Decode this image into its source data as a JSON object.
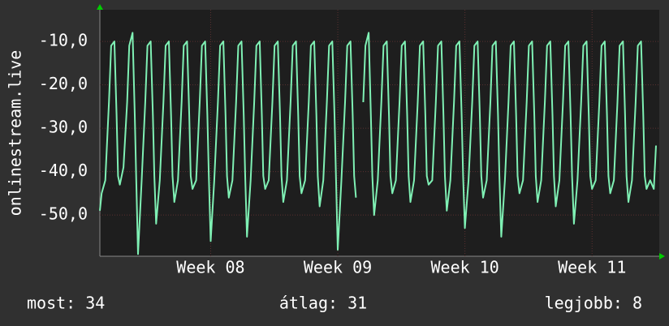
{
  "chart_data": {
    "type": "line",
    "y_label": "onlinestream.live",
    "xlim": [
      0,
      30.8
    ],
    "ylim": [
      -59.5,
      -2.7
    ],
    "xticks": [
      {
        "value": 6.1,
        "label": "Week 08"
      },
      {
        "value": 13.1,
        "label": "Week 09"
      },
      {
        "value": 20.1,
        "label": "Week 10"
      },
      {
        "value": 27.1,
        "label": "Week 11"
      }
    ],
    "yticks": [
      {
        "value": -10,
        "label": "-10,0"
      },
      {
        "value": -20,
        "label": "-20,0"
      },
      {
        "value": -30,
        "label": "-30,0"
      },
      {
        "value": -40,
        "label": "-40,0"
      },
      {
        "value": -50,
        "label": "-50,0"
      }
    ],
    "grid": true,
    "x": [
      0,
      0.1,
      0.3,
      0.5,
      0.62,
      0.8,
      0.92,
      1,
      1.1,
      1.3,
      1.5,
      1.62,
      1.8,
      1.92,
      2,
      2.1,
      2.3,
      2.5,
      2.62,
      2.8,
      2.92,
      3,
      3.1,
      3.3,
      3.5,
      3.62,
      3.8,
      3.92,
      4,
      4.1,
      4.3,
      4.5,
      4.62,
      4.8,
      4.92,
      5,
      5.1,
      5.3,
      5.5,
      5.62,
      5.8,
      5.92,
      6,
      6.1,
      6.3,
      6.5,
      6.62,
      6.8,
      6.92,
      7,
      7.1,
      7.3,
      7.5,
      7.62,
      7.8,
      7.92,
      8,
      8.1,
      8.3,
      8.5,
      8.62,
      8.8,
      8.92,
      9,
      9.1,
      9.3,
      9.5,
      9.62,
      9.8,
      9.92,
      10,
      10.1,
      10.3,
      10.5,
      10.62,
      10.8,
      10.92,
      11,
      11.1,
      11.3,
      11.5,
      11.62,
      11.8,
      11.92,
      12,
      12.1,
      12.3,
      12.5,
      12.62,
      12.8,
      12.92,
      13,
      13.1,
      13.3,
      13.5,
      13.62,
      13.8,
      13.92,
      14,
      14.1,
      14.3,
      14.5,
      14.62,
      14.8,
      14.92,
      15,
      15.1,
      15.3,
      15.5,
      15.62,
      15.8,
      15.92,
      16,
      16.1,
      16.3,
      16.5,
      16.62,
      16.8,
      16.92,
      17,
      17.1,
      17.3,
      17.5,
      17.62,
      17.8,
      17.92,
      18,
      18.1,
      18.3,
      18.5,
      18.62,
      18.8,
      18.92,
      19,
      19.1,
      19.3,
      19.5,
      19.62,
      19.8,
      19.92,
      20,
      20.1,
      20.3,
      20.5,
      20.62,
      20.8,
      20.92,
      21,
      21.1,
      21.3,
      21.5,
      21.62,
      21.8,
      21.92,
      22,
      22.1,
      22.3,
      22.5,
      22.62,
      22.8,
      22.92,
      23,
      23.1,
      23.3,
      23.5,
      23.62,
      23.8,
      23.92,
      24,
      24.1,
      24.3,
      24.5,
      24.62,
      24.8,
      24.92,
      25,
      25.1,
      25.3,
      25.5,
      25.62,
      25.8,
      25.92,
      26,
      26.1,
      26.3,
      26.5,
      26.62,
      26.8,
      26.92,
      27,
      27.1,
      27.3,
      27.5,
      27.62,
      27.8,
      27.92,
      28,
      28.1,
      28.3,
      28.5,
      28.62,
      28.8,
      28.92,
      29,
      29.1,
      29.3,
      29.5,
      29.62,
      29.8,
      29.92,
      30,
      30.1,
      30.3,
      30.5,
      30.62
    ],
    "series": [
      {
        "name": "onlinestream.live",
        "color": "#7ff0b4",
        "values": [
          -49,
          -45,
          -42,
          -24,
          -11,
          -10,
          -27,
          -41,
          -43,
          -39,
          -24,
          -11,
          -8,
          -27,
          -41,
          -59,
          -42,
          -24,
          -11,
          -10,
          -27,
          -41,
          -52,
          -42,
          -24,
          -11,
          -10,
          -27,
          -41,
          -47,
          -42,
          -24,
          -11,
          -10,
          -27,
          -41,
          -44,
          -42,
          -24,
          -11,
          -10,
          -27,
          -41,
          -56,
          -42,
          -24,
          -11,
          -10,
          -27,
          -41,
          -46,
          -42,
          -24,
          -11,
          -10,
          -27,
          -41,
          -55,
          -42,
          -24,
          -11,
          -10,
          -27,
          -41,
          -44,
          -42,
          -24,
          -11,
          -10,
          -27,
          -41,
          -47,
          -42,
          -24,
          -11,
          -10,
          -27,
          -41,
          -45,
          -42,
          -24,
          -11,
          -10,
          -27,
          -41,
          -48,
          -42,
          -24,
          -11,
          -10,
          -27,
          -41,
          -58,
          -42,
          -24,
          -11,
          -10,
          -27,
          -41,
          -46,
          null,
          -24,
          -11,
          -8,
          -27,
          -41,
          -50,
          -42,
          -24,
          -11,
          -10,
          -27,
          -41,
          -45,
          -42,
          -24,
          -11,
          -10,
          -27,
          -41,
          -47,
          -42,
          -24,
          -11,
          -10,
          -27,
          -41,
          -43,
          -42,
          -24,
          -11,
          -10,
          -27,
          -41,
          -49,
          -42,
          -24,
          -11,
          -10,
          -27,
          -41,
          -53,
          -42,
          -24,
          -11,
          -10,
          -27,
          -41,
          -46,
          -42,
          -24,
          -11,
          -10,
          -27,
          -41,
          -55,
          -42,
          -24,
          -11,
          -10,
          -27,
          -41,
          -45,
          -42,
          -24,
          -11,
          -10,
          -27,
          -41,
          -47,
          -42,
          -24,
          -11,
          -10,
          -27,
          -41,
          -48,
          -42,
          -24,
          -11,
          -10,
          -27,
          -41,
          -52,
          -42,
          -24,
          -11,
          -10,
          -27,
          -41,
          -44,
          -42,
          -24,
          -11,
          -10,
          -27,
          -41,
          -45,
          -42,
          -24,
          -11,
          -10,
          -27,
          -41,
          -47,
          -42,
          -24,
          -11,
          -10,
          -27,
          -41,
          -44,
          -42,
          -44,
          -34
        ]
      }
    ],
    "stats": [
      "most: 34",
      "átlag: 31",
      "legjobb: 8"
    ]
  }
}
